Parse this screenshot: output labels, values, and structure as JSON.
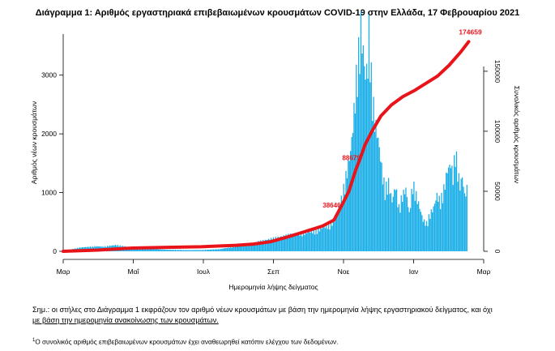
{
  "chart_data": {
    "type": "bar+line",
    "title": "Διάγραμμα 1: Αριθμός εργαστηριακά επιβεβαιωμένων κρουσμάτων COVID-19 στην Ελλάδα, 17 Φεβρουαρίου 2021",
    "xlabel": "Ημερομηνία λήψης δείγματος",
    "ylabel_left": "Αριθμός νέων κρουσμάτων",
    "ylabel_right": "Συνολικός αριθμός κρουσμάτων",
    "x_ticks": [
      "Μαρ",
      "Μαΐ",
      "Ιουλ",
      "Σεπ",
      "Νοε",
      "Ιαν",
      "Μαρ"
    ],
    "y_left_ticks": [
      0,
      1000,
      2000,
      3000
    ],
    "y_left_range": [
      0,
      3700
    ],
    "y_right_ticks": [
      0,
      50000,
      100000,
      150000
    ],
    "y_right_range": [
      0,
      181000
    ],
    "x_range_days": [
      0,
      365
    ],
    "bar_color": "#1aaee8",
    "line_color": "#e8141a",
    "bars": {
      "description_note": "",
      "keypoints": [
        [
          0,
          5
        ],
        [
          14,
          60
        ],
        [
          28,
          80
        ],
        [
          35,
          75
        ],
        [
          45,
          100
        ],
        [
          60,
          60
        ],
        [
          75,
          40
        ],
        [
          90,
          25
        ],
        [
          105,
          20
        ],
        [
          120,
          20
        ],
        [
          135,
          35
        ],
        [
          150,
          80
        ],
        [
          160,
          100
        ],
        [
          170,
          160
        ],
        [
          180,
          200
        ],
        [
          190,
          240
        ],
        [
          200,
          280
        ],
        [
          210,
          300
        ],
        [
          220,
          330
        ],
        [
          225,
          380
        ],
        [
          230,
          420
        ],
        [
          235,
          500
        ],
        [
          240,
          750
        ],
        [
          243,
          1000
        ],
        [
          246,
          1300
        ],
        [
          249,
          1600
        ],
        [
          251,
          2000
        ],
        [
          253,
          2500
        ],
        [
          255,
          3050
        ],
        [
          257,
          3300
        ],
        [
          258,
          3620
        ],
        [
          260,
          3200
        ],
        [
          262,
          2800
        ],
        [
          264,
          3000
        ],
        [
          265,
          3550
        ],
        [
          267,
          2800
        ],
        [
          269,
          2300
        ],
        [
          271,
          2000
        ],
        [
          273,
          1800
        ],
        [
          275,
          1500
        ],
        [
          277,
          1200
        ],
        [
          279,
          1000
        ],
        [
          282,
          1100
        ],
        [
          285,
          800
        ],
        [
          288,
          1050
        ],
        [
          291,
          700
        ],
        [
          294,
          900
        ],
        [
          297,
          1000
        ],
        [
          300,
          600
        ],
        [
          303,
          1100
        ],
        [
          306,
          900
        ],
        [
          309,
          700
        ],
        [
          312,
          500
        ],
        [
          315,
          450
        ],
        [
          318,
          600
        ],
        [
          321,
          700
        ],
        [
          324,
          900
        ],
        [
          327,
          800
        ],
        [
          330,
          1000
        ],
        [
          333,
          1300
        ],
        [
          336,
          1400
        ],
        [
          338,
          1200
        ],
        [
          340,
          1660
        ],
        [
          342,
          1300
        ],
        [
          344,
          1050
        ],
        [
          346,
          1200
        ],
        [
          348,
          900
        ],
        [
          350,
          1000
        ]
      ]
    },
    "cumulative": {
      "series_name": "",
      "points": [
        [
          0,
          0
        ],
        [
          30,
          1000
        ],
        [
          60,
          2700
        ],
        [
          90,
          3300
        ],
        [
          120,
          3800
        ],
        [
          150,
          5000
        ],
        [
          165,
          6000
        ],
        [
          180,
          8000
        ],
        [
          195,
          12000
        ],
        [
          210,
          16500
        ],
        [
          225,
          21000
        ],
        [
          235,
          26000
        ],
        [
          242,
          38646
        ],
        [
          248,
          50000
        ],
        [
          254,
          68000
        ],
        [
          258,
          78000
        ],
        [
          262,
          88679
        ],
        [
          268,
          100000
        ],
        [
          276,
          113000
        ],
        [
          285,
          122000
        ],
        [
          295,
          129000
        ],
        [
          305,
          134000
        ],
        [
          315,
          140000
        ],
        [
          325,
          146000
        ],
        [
          335,
          155000
        ],
        [
          345,
          166000
        ],
        [
          352,
          174659
        ]
      ],
      "annotations": [
        {
          "x": 243,
          "value": "38646"
        },
        {
          "x": 260,
          "value": "88679"
        },
        {
          "x": 352,
          "value": "174659"
        }
      ]
    }
  },
  "notes": {
    "main_line1": "Σημ.: οι στήλες στο Διάγραμμα 1 εκφράζουν τον αριθμό νέων κρουσμάτων με βάση την ημερομηνία λήψης εργαστηριακού δείγματος, και όχι",
    "main_line2": "με βάση την ημερομηνία ανακοίνωσης των κρουσμάτων.",
    "footnote_marker": "1",
    "footnote": "Ο συνολικός αριθμός επιβεβαιωμένων κρουσμάτων έχει αναθεωρηθεί κατόπιν ελέγχου των δεδομένων."
  }
}
